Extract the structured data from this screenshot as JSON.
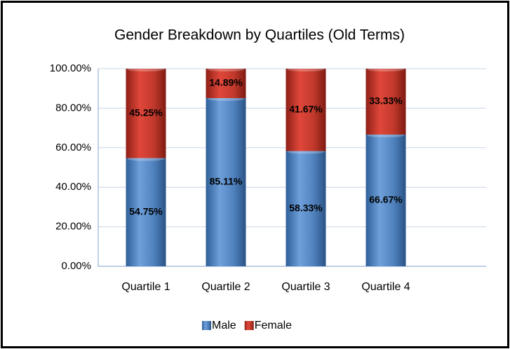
{
  "chart_data": {
    "type": "stacked_bar",
    "title": "Gender Breakdown by Quartiles (Old Terms)",
    "categories": [
      "Quartile 1",
      "Quartile 2",
      "Quartile 3",
      "Quartile 4"
    ],
    "series": [
      {
        "name": "Male",
        "color": "#4f81bd",
        "values": [
          54.75,
          85.11,
          58.33,
          66.67
        ],
        "value_labels": [
          "54.75%",
          "85.11%",
          "58.33%",
          "66.67%"
        ]
      },
      {
        "name": "Female",
        "color": "#c0392b",
        "values": [
          45.25,
          14.89,
          41.67,
          33.33
        ],
        "value_labels": [
          "45.25%",
          "14.89%",
          "41.67%",
          "33.33%"
        ]
      }
    ],
    "ylim": [
      0,
      100
    ],
    "yticks": [
      {
        "value": 0,
        "label": "0.00%"
      },
      {
        "value": 20,
        "label": "20.00%"
      },
      {
        "value": 40,
        "label": "40.00%"
      },
      {
        "value": 60,
        "label": "60.00%"
      },
      {
        "value": 80,
        "label": "80.00%"
      },
      {
        "value": 100,
        "label": "100.00%"
      }
    ],
    "grid": true,
    "legend": "bottom"
  }
}
